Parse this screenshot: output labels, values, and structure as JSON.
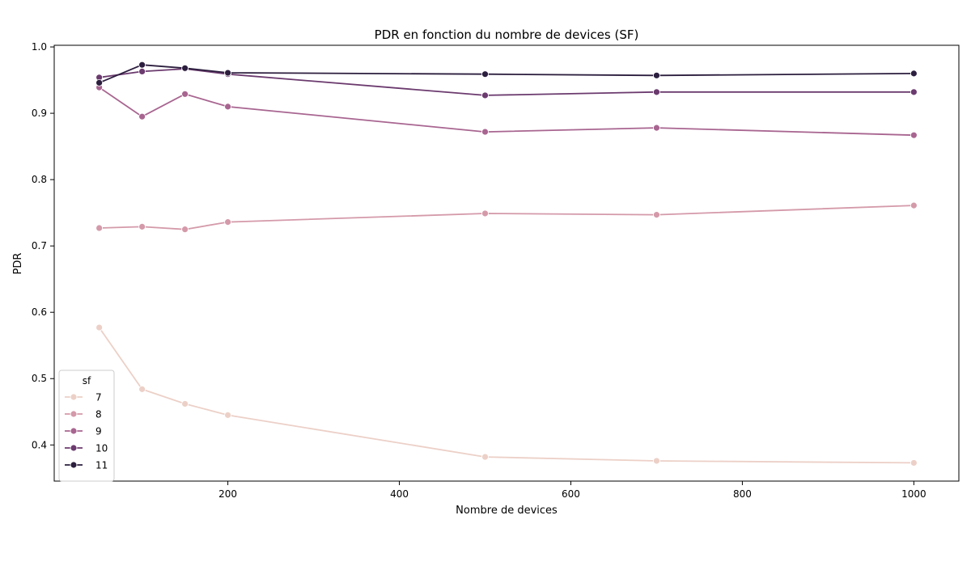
{
  "chart_data": {
    "type": "line",
    "title": "PDR en fonction du nombre de devices (SF)",
    "xlabel": "Nombre de devices",
    "ylabel": "PDR",
    "xlim": [
      -2.5,
      1052.5
    ],
    "ylim": [
      0.3455,
      1.0025
    ],
    "xticks": [
      200,
      400,
      600,
      800,
      1000
    ],
    "yticks": [
      0.4,
      0.5,
      0.6,
      0.7,
      0.8,
      0.9,
      1.0
    ],
    "grid": false,
    "legend": {
      "title": "sf",
      "position": "lower-left"
    },
    "x": [
      50,
      100,
      150,
      200,
      500,
      700,
      1000
    ],
    "series": [
      {
        "name": "7",
        "color": "#ecd0c7",
        "values": [
          0.577,
          0.484,
          0.462,
          0.445,
          0.382,
          0.376,
          0.373
        ]
      },
      {
        "name": "8",
        "color": "#d49aaa",
        "values": [
          0.727,
          0.729,
          0.725,
          0.736,
          0.749,
          0.747,
          0.761
        ]
      },
      {
        "name": "9",
        "color": "#a86590",
        "values": [
          0.939,
          0.895,
          0.929,
          0.91,
          0.872,
          0.878,
          0.867
        ]
      },
      {
        "name": "10",
        "color": "#6b3a6e",
        "values": [
          0.954,
          0.963,
          0.967,
          0.959,
          0.927,
          0.932,
          0.932
        ]
      },
      {
        "name": "11",
        "color": "#2c1e3e",
        "values": [
          0.946,
          0.973,
          0.968,
          0.961,
          0.959,
          0.957,
          0.96
        ]
      }
    ]
  }
}
